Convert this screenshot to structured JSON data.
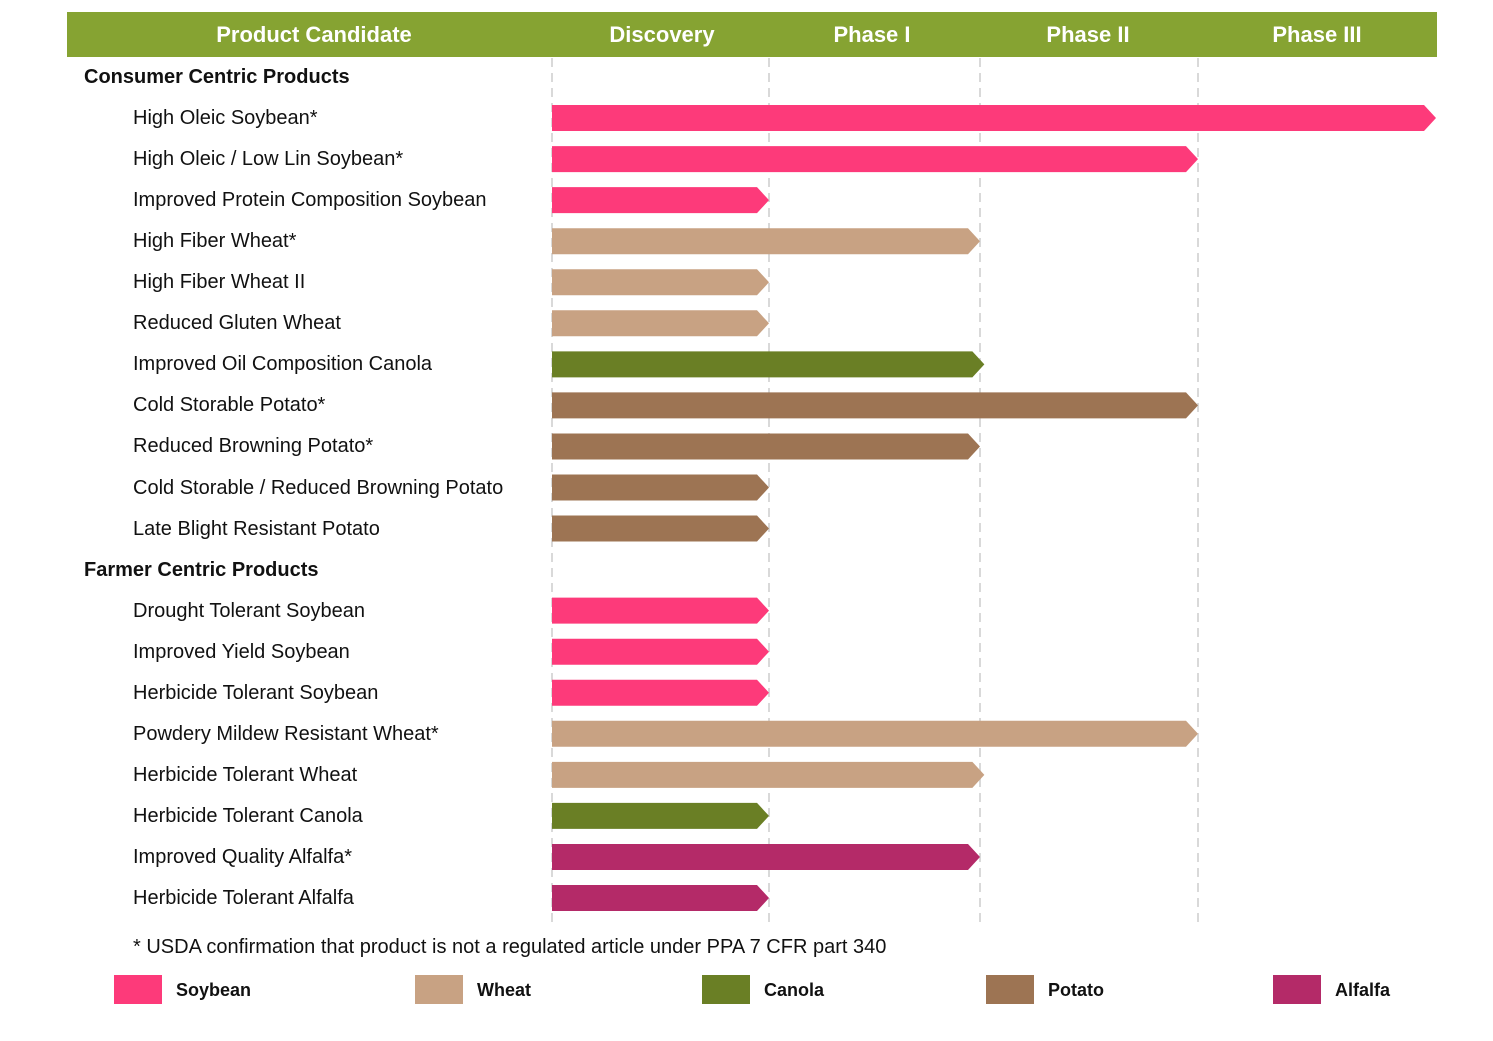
{
  "chart_data": {
    "type": "pipeline",
    "title": "",
    "columns": [
      "Product Candidate",
      "Discovery",
      "Phase I",
      "Phase II",
      "Phase III"
    ],
    "phase_scale": "0 = start of Discovery, 1 = end of Discovery, 2 = end of Phase I, 3 = end of Phase II, 4 = end of Phase III",
    "sections": [
      {
        "title": "Consumer Centric Products",
        "items": [
          {
            "label": "High Oleic Soybean*",
            "crop": "Soybean",
            "progress": 4.0
          },
          {
            "label": "High Oleic / Low Lin Soybean*",
            "crop": "Soybean",
            "progress": 3.0
          },
          {
            "label": "Improved Protein Composition Soybean",
            "crop": "Soybean",
            "progress": 1.0
          },
          {
            "label": "High Fiber Wheat*",
            "crop": "Wheat",
            "progress": 2.0
          },
          {
            "label": "High Fiber Wheat II",
            "crop": "Wheat",
            "progress": 1.0
          },
          {
            "label": "Reduced Gluten Wheat",
            "crop": "Wheat",
            "progress": 1.0
          },
          {
            "label": "Improved Oil Composition Canola",
            "crop": "Canola",
            "progress": 2.02
          },
          {
            "label": "Cold Storable Potato*",
            "crop": "Potato",
            "progress": 3.0
          },
          {
            "label": "Reduced Browning Potato*",
            "crop": "Potato",
            "progress": 2.0
          },
          {
            "label": "Cold Storable / Reduced Browning Potato",
            "crop": "Potato",
            "progress": 1.0
          },
          {
            "label": "Late Blight Resistant Potato",
            "crop": "Potato",
            "progress": 1.0
          }
        ]
      },
      {
        "title": "Farmer Centric Products",
        "items": [
          {
            "label": "Drought Tolerant Soybean",
            "crop": "Soybean",
            "progress": 1.0
          },
          {
            "label": "Improved Yield Soybean",
            "crop": "Soybean",
            "progress": 1.0
          },
          {
            "label": "Herbicide Tolerant Soybean",
            "crop": "Soybean",
            "progress": 1.0
          },
          {
            "label": "Powdery Mildew Resistant Wheat*",
            "crop": "Wheat",
            "progress": 3.0
          },
          {
            "label": "Herbicide Tolerant Wheat",
            "crop": "Wheat",
            "progress": 2.02
          },
          {
            "label": "Herbicide Tolerant Canola",
            "crop": "Canola",
            "progress": 1.0
          },
          {
            "label": "Improved Quality Alfalfa*",
            "crop": "Alfalfa",
            "progress": 2.0
          },
          {
            "label": "Herbicide Tolerant Alfalfa",
            "crop": "Alfalfa",
            "progress": 1.0
          }
        ]
      }
    ],
    "footnote": "* USDA confirmation that product is not a regulated article under PPA 7 CFR part 340",
    "legend": [
      {
        "name": "Soybean",
        "color": "#fd3a7a"
      },
      {
        "name": "Wheat",
        "color": "#c8a283"
      },
      {
        "name": "Canola",
        "color": "#6a7f25"
      },
      {
        "name": "Potato",
        "color": "#9d7453"
      },
      {
        "name": "Alfalfa",
        "color": "#b42a68"
      }
    ],
    "header_color": "#86a332"
  }
}
